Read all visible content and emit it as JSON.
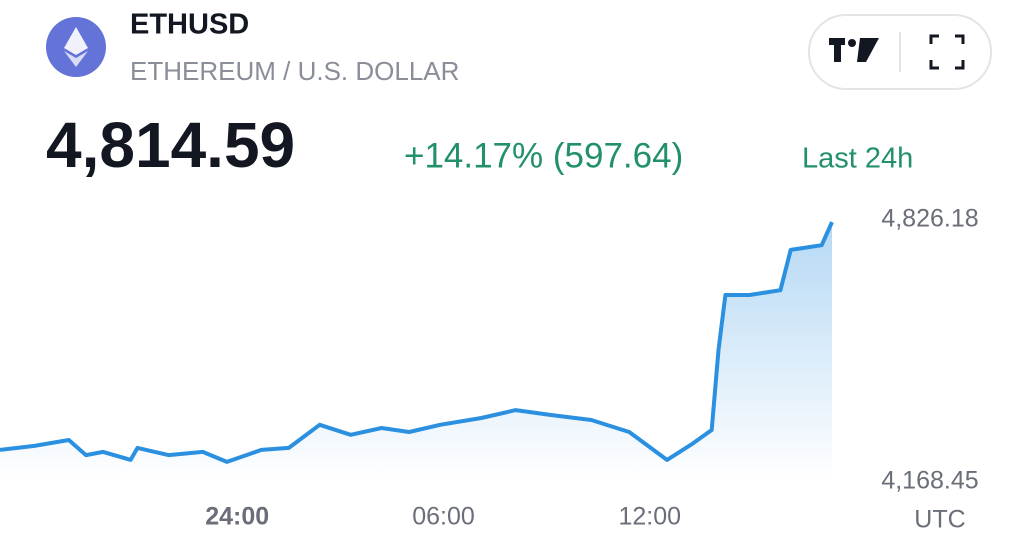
{
  "header": {
    "symbol": "ETHUSD",
    "name": "ETHEREUM / U.S. DOLLAR",
    "price": "4,814.59",
    "change": "+14.17% (597.64)",
    "period": "Last 24h"
  },
  "chart_data": {
    "type": "line",
    "x": [
      17.1,
      18.1,
      19.1,
      19.6,
      20.1,
      20.9,
      21.1,
      22.0,
      23.0,
      23.7,
      24.7,
      25.5,
      26.4,
      27.3,
      28.2,
      29.0,
      29.9,
      31.1,
      32.1,
      33.1,
      34.3,
      35.4,
      36.5,
      37.2,
      37.8,
      38.0,
      38.2,
      38.9,
      39.8,
      40.1,
      41.0,
      41.3
    ],
    "values": [
      4249,
      4259,
      4274,
      4236,
      4244,
      4224,
      4254,
      4236,
      4244,
      4219,
      4249,
      4254,
      4312,
      4287,
      4304,
      4294,
      4312,
      4329,
      4349,
      4337,
      4324,
      4294,
      4224,
      4262,
      4299,
      4500,
      4638,
      4638,
      4650,
      4751,
      4763,
      4821
    ],
    "color": "#2b90e0",
    "xlim": [
      17.1,
      41.3
    ],
    "xticks": [
      {
        "value": 24,
        "label": "24:00"
      },
      {
        "value": 30,
        "label": "06:00"
      },
      {
        "value": 36,
        "label": "12:00"
      }
    ],
    "ylim": [
      4168.45,
      4826.18
    ],
    "yticks": [
      {
        "value": 4826.18,
        "label": "4,826.18"
      },
      {
        "value": 4168.45,
        "label": "4,168.45"
      }
    ],
    "x_label": "UTC"
  }
}
